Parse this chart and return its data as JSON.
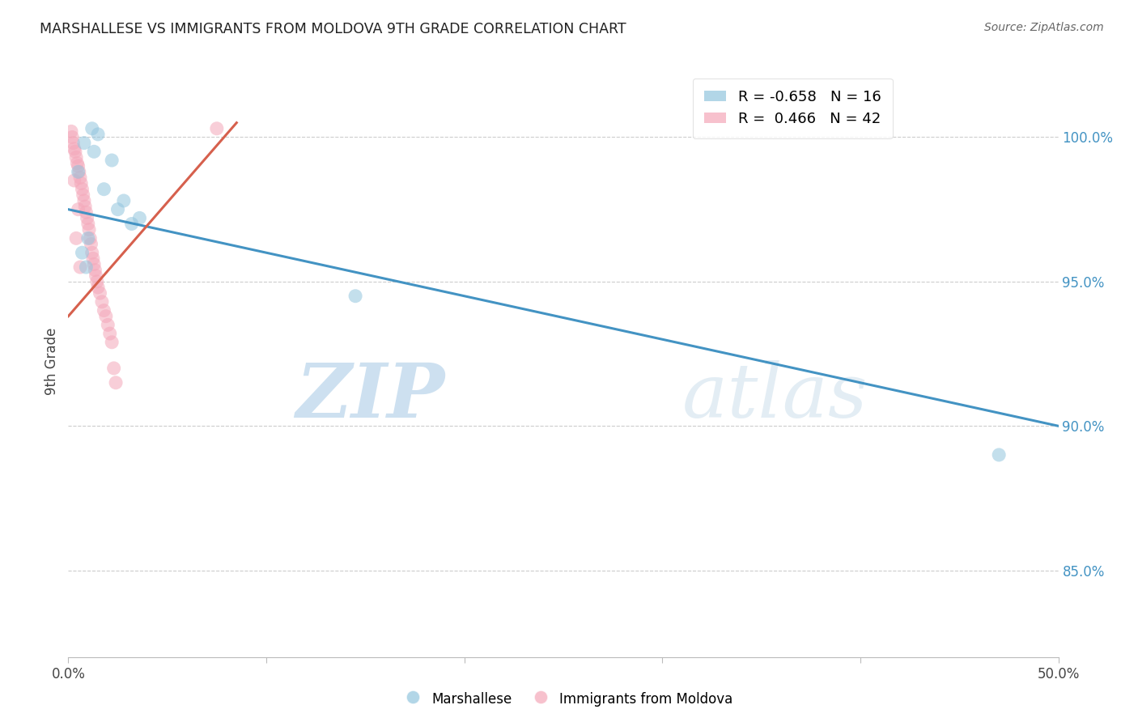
{
  "title": "MARSHALLESE VS IMMIGRANTS FROM MOLDOVA 9TH GRADE CORRELATION CHART",
  "source": "Source: ZipAtlas.com",
  "ylabel": "9th Grade",
  "right_yticks": [
    100.0,
    95.0,
    90.0,
    85.0
  ],
  "right_ytick_labels": [
    "100.0%",
    "95.0%",
    "90.0%",
    "85.0%"
  ],
  "xlim": [
    0.0,
    50.0
  ],
  "ylim": [
    82.0,
    102.5
  ],
  "legend_blue_r": "-0.658",
  "legend_blue_n": "16",
  "legend_pink_r": "0.466",
  "legend_pink_n": "42",
  "legend_label_blue": "Marshallese",
  "legend_label_pink": "Immigrants from Moldova",
  "blue_color": "#92c5de",
  "pink_color": "#f4a7b9",
  "blue_line_color": "#4393c3",
  "pink_line_color": "#d6604d",
  "watermark_zip": "ZIP",
  "watermark_atlas": "atlas",
  "blue_scatter_x": [
    1.2,
    1.5,
    0.8,
    2.2,
    0.5,
    1.8,
    2.5,
    3.2,
    1.0,
    0.7,
    0.9,
    2.8,
    3.6,
    14.5,
    47.0,
    1.3
  ],
  "blue_scatter_y": [
    100.3,
    100.1,
    99.8,
    99.2,
    98.8,
    98.2,
    97.5,
    97.0,
    96.5,
    96.0,
    95.5,
    97.8,
    97.2,
    94.5,
    89.0,
    99.5
  ],
  "pink_scatter_x": [
    0.15,
    0.2,
    0.25,
    0.3,
    0.35,
    0.4,
    0.45,
    0.5,
    0.55,
    0.6,
    0.65,
    0.7,
    0.75,
    0.8,
    0.85,
    0.9,
    0.95,
    1.0,
    1.05,
    1.1,
    1.15,
    1.2,
    1.25,
    1.3,
    1.35,
    1.4,
    1.45,
    1.5,
    1.6,
    1.7,
    1.8,
    1.9,
    2.0,
    2.1,
    2.2,
    2.3,
    2.4,
    7.5,
    0.3,
    0.5,
    0.4,
    0.6
  ],
  "pink_scatter_y": [
    100.2,
    100.0,
    99.8,
    99.6,
    99.5,
    99.3,
    99.1,
    99.0,
    98.8,
    98.6,
    98.4,
    98.2,
    98.0,
    97.8,
    97.6,
    97.4,
    97.2,
    97.0,
    96.8,
    96.5,
    96.3,
    96.0,
    95.8,
    95.6,
    95.4,
    95.2,
    95.0,
    94.8,
    94.6,
    94.3,
    94.0,
    93.8,
    93.5,
    93.2,
    92.9,
    92.0,
    91.5,
    100.3,
    98.5,
    97.5,
    96.5,
    95.5
  ],
  "blue_line_x0": 0.0,
  "blue_line_y0": 97.5,
  "blue_line_x1": 50.0,
  "blue_line_y1": 90.0,
  "pink_line_x0": 0.0,
  "pink_line_y0": 93.8,
  "pink_line_x1": 8.5,
  "pink_line_y1": 100.5
}
